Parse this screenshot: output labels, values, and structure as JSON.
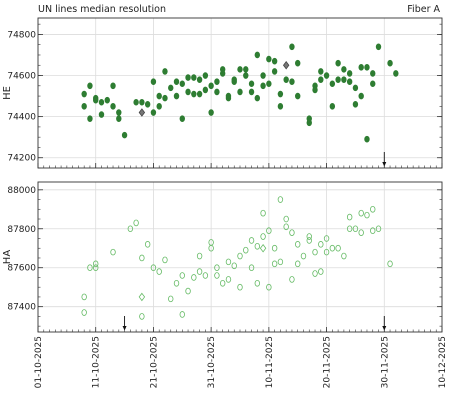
{
  "title": "UN lines median resolution",
  "fiber": "Fiber A",
  "x_ticks": [
    "01-10-2025",
    "11-10-2025",
    "21-10-2025",
    "31-10-2025",
    "10-11-2025",
    "20-11-2025",
    "30-11-2025",
    "10-12-2025"
  ],
  "chart_data": [
    {
      "type": "scatter",
      "ylabel": "HE",
      "xlim": [
        "2025-10-01",
        "2025-12-10"
      ],
      "ylim": [
        74150,
        74880
      ],
      "yticks": [
        74200,
        74400,
        74600,
        74800
      ],
      "grid": true,
      "marker_color": "#2e7d32",
      "filled": true,
      "arrows": [
        "2025-11-30"
      ],
      "series": [
        {
          "name": "",
          "marker": "circle",
          "points": [
            [
              "2025-10-09",
              74510
            ],
            [
              "2025-10-09",
              74450
            ],
            [
              "2025-10-10",
              74390
            ],
            [
              "2025-10-10",
              74550
            ],
            [
              "2025-10-11",
              74490
            ],
            [
              "2025-10-11",
              74480
            ],
            [
              "2025-10-12",
              74470
            ],
            [
              "2025-10-12",
              74410
            ],
            [
              "2025-10-13",
              74480
            ],
            [
              "2025-10-14",
              74450
            ],
            [
              "2025-10-14",
              74550
            ],
            [
              "2025-10-15",
              74420
            ],
            [
              "2025-10-15",
              74390
            ],
            [
              "2025-10-16",
              74310
            ],
            [
              "2025-10-18",
              74470
            ],
            [
              "2025-10-19",
              74470
            ],
            [
              "2025-10-20",
              74460
            ],
            [
              "2025-10-21",
              74420
            ],
            [
              "2025-10-21",
              74570
            ],
            [
              "2025-10-22",
              74500
            ],
            [
              "2025-10-22",
              74450
            ],
            [
              "2025-10-23",
              74490
            ],
            [
              "2025-10-23",
              74620
            ],
            [
              "2025-10-24",
              74540
            ],
            [
              "2025-10-25",
              74500
            ],
            [
              "2025-10-25",
              74570
            ],
            [
              "2025-10-26",
              74390
            ],
            [
              "2025-10-26",
              74560
            ],
            [
              "2025-10-27",
              74520
            ],
            [
              "2025-10-27",
              74590
            ],
            [
              "2025-10-28",
              74510
            ],
            [
              "2025-10-28",
              74590
            ],
            [
              "2025-10-29",
              74510
            ],
            [
              "2025-10-29",
              74580
            ],
            [
              "2025-10-30",
              74530
            ],
            [
              "2025-10-30",
              74600
            ],
            [
              "2025-10-31",
              74420
            ],
            [
              "2025-10-31",
              74550
            ],
            [
              "2025-11-01",
              74570
            ],
            [
              "2025-11-01",
              74520
            ],
            [
              "2025-11-02",
              74610
            ],
            [
              "2025-11-02",
              74630
            ],
            [
              "2025-11-03",
              74490
            ],
            [
              "2025-11-03",
              74500
            ],
            [
              "2025-11-04",
              74570
            ],
            [
              "2025-11-04",
              74580
            ],
            [
              "2025-11-05",
              74520
            ],
            [
              "2025-11-05",
              74630
            ],
            [
              "2025-11-06",
              74600
            ],
            [
              "2025-11-06",
              74630
            ],
            [
              "2025-11-07",
              74520
            ],
            [
              "2025-11-07",
              74560
            ],
            [
              "2025-11-08",
              74490
            ],
            [
              "2025-11-08",
              74700
            ],
            [
              "2025-11-09",
              74550
            ],
            [
              "2025-11-09",
              74600
            ],
            [
              "2025-11-10",
              74680
            ],
            [
              "2025-11-10",
              74560
            ],
            [
              "2025-11-11",
              74620
            ],
            [
              "2025-11-11",
              74670
            ],
            [
              "2025-11-12",
              74510
            ],
            [
              "2025-11-12",
              74450
            ],
            [
              "2025-11-13",
              74580
            ],
            [
              "2025-11-14",
              74570
            ],
            [
              "2025-11-14",
              74740
            ],
            [
              "2025-11-15",
              74500
            ],
            [
              "2025-11-15",
              74660
            ],
            [
              "2025-11-17",
              74370
            ],
            [
              "2025-11-17",
              74390
            ],
            [
              "2025-11-18",
              74550
            ],
            [
              "2025-11-18",
              74530
            ],
            [
              "2025-11-19",
              74580
            ],
            [
              "2025-11-19",
              74620
            ],
            [
              "2025-11-20",
              74600
            ],
            [
              "2025-11-21",
              74450
            ],
            [
              "2025-11-21",
              74560
            ],
            [
              "2025-11-22",
              74580
            ],
            [
              "2025-11-22",
              74660
            ],
            [
              "2025-11-23",
              74580
            ],
            [
              "2025-11-23",
              74630
            ],
            [
              "2025-11-24",
              74570
            ],
            [
              "2025-11-24",
              74610
            ],
            [
              "2025-11-25",
              74540
            ],
            [
              "2025-11-25",
              74460
            ],
            [
              "2025-11-26",
              74640
            ],
            [
              "2025-11-26",
              74500
            ],
            [
              "2025-11-27",
              74290
            ],
            [
              "2025-11-27",
              74640
            ],
            [
              "2025-11-28",
              74560
            ],
            [
              "2025-11-28",
              74610
            ],
            [
              "2025-11-29",
              74740
            ],
            [
              "2025-12-01",
              74660
            ],
            [
              "2025-12-02",
              74610
            ]
          ]
        },
        {
          "name": "",
          "marker": "diamond",
          "color": "#777777",
          "points": [
            [
              "2025-10-19",
              74420
            ],
            [
              "2025-11-13",
              74650
            ]
          ]
        }
      ]
    },
    {
      "type": "scatter",
      "ylabel": "HA",
      "xlim": [
        "2025-10-01",
        "2025-12-10"
      ],
      "ylim": [
        87270,
        88040
      ],
      "yticks": [
        87400,
        87600,
        87800,
        88000
      ],
      "grid": true,
      "marker_color": "#66bb66",
      "filled": false,
      "arrows": [
        "2025-10-16",
        "2025-11-30"
      ],
      "series": [
        {
          "name": "",
          "marker": "circle",
          "points": [
            [
              "2025-10-09",
              87370
            ],
            [
              "2025-10-09",
              87450
            ],
            [
              "2025-10-10",
              87600
            ],
            [
              "2025-10-11",
              87620
            ],
            [
              "2025-10-11",
              87600
            ],
            [
              "2025-10-14",
              87680
            ],
            [
              "2025-10-17",
              87800
            ],
            [
              "2025-10-18",
              87830
            ],
            [
              "2025-10-19",
              87650
            ],
            [
              "2025-10-19",
              87350
            ],
            [
              "2025-10-20",
              87720
            ],
            [
              "2025-10-21",
              87600
            ],
            [
              "2025-10-22",
              87580
            ],
            [
              "2025-10-23",
              87640
            ],
            [
              "2025-10-24",
              87440
            ],
            [
              "2025-10-25",
              87520
            ],
            [
              "2025-10-26",
              87360
            ],
            [
              "2025-10-26",
              87560
            ],
            [
              "2025-10-27",
              87480
            ],
            [
              "2025-10-28",
              87550
            ],
            [
              "2025-10-29",
              87660
            ],
            [
              "2025-10-29",
              87580
            ],
            [
              "2025-10-30",
              87560
            ],
            [
              "2025-10-31",
              87700
            ],
            [
              "2025-10-31",
              87730
            ],
            [
              "2025-11-01",
              87600
            ],
            [
              "2025-11-01",
              87560
            ],
            [
              "2025-11-02",
              87520
            ],
            [
              "2025-11-03",
              87630
            ],
            [
              "2025-11-03",
              87540
            ],
            [
              "2025-11-04",
              87610
            ],
            [
              "2025-11-05",
              87500
            ],
            [
              "2025-11-05",
              87660
            ],
            [
              "2025-11-06",
              87690
            ],
            [
              "2025-11-07",
              87600
            ],
            [
              "2025-11-07",
              87740
            ],
            [
              "2025-11-08",
              87710
            ],
            [
              "2025-11-08",
              87520
            ],
            [
              "2025-11-09",
              87760
            ],
            [
              "2025-11-09",
              87880
            ],
            [
              "2025-11-10",
              87790
            ],
            [
              "2025-11-10",
              87500
            ],
            [
              "2025-11-11",
              87620
            ],
            [
              "2025-11-11",
              87700
            ],
            [
              "2025-11-12",
              87630
            ],
            [
              "2025-11-12",
              87950
            ],
            [
              "2025-11-13",
              87810
            ],
            [
              "2025-11-13",
              87850
            ],
            [
              "2025-11-14",
              87540
            ],
            [
              "2025-11-14",
              87780
            ],
            [
              "2025-11-15",
              87720
            ],
            [
              "2025-11-15",
              87620
            ],
            [
              "2025-11-16",
              87660
            ],
            [
              "2025-11-17",
              87740
            ],
            [
              "2025-11-17",
              87760
            ],
            [
              "2025-11-18",
              87570
            ],
            [
              "2025-11-18",
              87680
            ],
            [
              "2025-11-19",
              87720
            ],
            [
              "2025-11-19",
              87580
            ],
            [
              "2025-11-20",
              87750
            ],
            [
              "2025-11-20",
              87680
            ],
            [
              "2025-11-21",
              87700
            ],
            [
              "2025-11-22",
              87700
            ],
            [
              "2025-11-23",
              87660
            ],
            [
              "2025-11-24",
              87860
            ],
            [
              "2025-11-24",
              87800
            ],
            [
              "2025-11-25",
              87800
            ],
            [
              "2025-11-26",
              87880
            ],
            [
              "2025-11-26",
              87780
            ],
            [
              "2025-11-27",
              87870
            ],
            [
              "2025-11-28",
              87790
            ],
            [
              "2025-11-28",
              87900
            ],
            [
              "2025-11-29",
              87800
            ],
            [
              "2025-12-01",
              87620
            ]
          ]
        },
        {
          "name": "",
          "marker": "diamond",
          "color": "#66bb66",
          "points": [
            [
              "2025-10-19",
              87450
            ],
            [
              "2025-11-09",
              87700
            ]
          ]
        }
      ]
    }
  ]
}
